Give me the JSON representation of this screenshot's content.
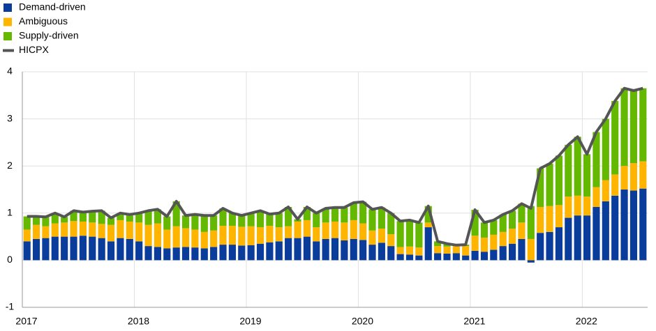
{
  "chart_data": {
    "type": "stacked-bar-line",
    "categories": [
      "2017",
      null,
      null,
      null,
      null,
      null,
      null,
      null,
      null,
      null,
      null,
      null,
      "2018",
      null,
      null,
      null,
      null,
      null,
      null,
      null,
      null,
      null,
      null,
      null,
      "2019",
      null,
      null,
      null,
      null,
      null,
      null,
      null,
      null,
      null,
      null,
      null,
      "2020",
      null,
      null,
      null,
      null,
      null,
      null,
      null,
      null,
      null,
      null,
      null,
      "2021",
      null,
      null,
      null,
      null,
      null,
      null,
      null,
      null,
      null,
      null,
      null,
      "2022",
      null,
      null,
      null,
      null,
      null,
      null
    ],
    "series": [
      {
        "name": "Demand-driven",
        "color": "#0a3c9c",
        "kind": "bar",
        "values": [
          0.4,
          0.45,
          0.47,
          0.5,
          0.5,
          0.5,
          0.52,
          0.5,
          0.47,
          0.4,
          0.47,
          0.45,
          0.4,
          0.3,
          0.28,
          0.25,
          0.27,
          0.28,
          0.27,
          0.25,
          0.28,
          0.33,
          0.33,
          0.31,
          0.32,
          0.35,
          0.38,
          0.4,
          0.47,
          0.47,
          0.5,
          0.4,
          0.45,
          0.47,
          0.42,
          0.45,
          0.43,
          0.33,
          0.37,
          0.3,
          0.13,
          0.12,
          0.1,
          0.7,
          0.15,
          0.14,
          0.15,
          0.1,
          0.2,
          0.18,
          0.22,
          0.3,
          0.35,
          0.45,
          -0.05,
          0.58,
          0.6,
          0.7,
          0.9,
          0.95,
          0.95,
          1.13,
          1.25,
          1.37,
          1.5,
          1.48,
          1.52
        ]
      },
      {
        "name": "Ambiguous",
        "color": "#ffb400",
        "kind": "bar",
        "values": [
          0.25,
          0.3,
          0.25,
          0.28,
          0.3,
          0.33,
          0.3,
          0.3,
          0.3,
          0.35,
          0.38,
          0.37,
          0.4,
          0.45,
          0.5,
          0.4,
          0.45,
          0.4,
          0.38,
          0.35,
          0.35,
          0.4,
          0.4,
          0.4,
          0.4,
          0.35,
          0.35,
          0.3,
          0.25,
          0.35,
          0.35,
          0.3,
          0.35,
          0.35,
          0.38,
          0.4,
          0.35,
          0.3,
          0.3,
          0.25,
          0.15,
          0.17,
          0.17,
          0.1,
          0.15,
          0.15,
          0.15,
          0.2,
          0.32,
          0.3,
          0.32,
          0.3,
          0.32,
          0.35,
          0.45,
          0.55,
          0.55,
          0.47,
          0.45,
          0.42,
          0.4,
          0.42,
          0.45,
          0.45,
          0.5,
          0.58,
          0.58
        ]
      },
      {
        "name": "Supply-driven",
        "color": "#65b800",
        "kind": "bar",
        "values": [
          0.28,
          0.18,
          0.2,
          0.22,
          0.12,
          0.22,
          0.2,
          0.24,
          0.28,
          0.15,
          0.15,
          0.15,
          0.2,
          0.3,
          0.3,
          0.28,
          0.53,
          0.27,
          0.32,
          0.35,
          0.32,
          0.37,
          0.27,
          0.24,
          0.28,
          0.35,
          0.25,
          0.3,
          0.41,
          0.05,
          0.28,
          0.3,
          0.3,
          0.3,
          0.32,
          0.37,
          0.46,
          0.45,
          0.45,
          0.45,
          0.55,
          0.56,
          0.53,
          0.35,
          0.1,
          0.06,
          0.02,
          0.03,
          0.55,
          0.32,
          0.31,
          0.37,
          0.38,
          0.4,
          0.7,
          0.82,
          0.9,
          1.05,
          1.1,
          1.25,
          0.9,
          1.17,
          1.3,
          1.56,
          1.65,
          1.54,
          1.55
        ]
      },
      {
        "name": "HICPX",
        "color": "#555555",
        "kind": "line",
        "values": [
          0.93,
          0.93,
          0.92,
          1.0,
          0.92,
          1.05,
          1.02,
          1.04,
          1.05,
          0.9,
          1.0,
          0.97,
          1.0,
          1.05,
          1.08,
          0.93,
          1.25,
          0.95,
          0.97,
          0.95,
          0.95,
          1.1,
          1.0,
          0.95,
          1.0,
          1.05,
          0.98,
          1.0,
          1.13,
          0.87,
          1.13,
          1.0,
          1.1,
          1.12,
          1.12,
          1.22,
          1.24,
          1.08,
          1.12,
          1.0,
          0.83,
          0.85,
          0.8,
          1.15,
          0.4,
          0.35,
          0.32,
          0.33,
          1.07,
          0.8,
          0.85,
          0.97,
          1.05,
          1.2,
          1.1,
          1.95,
          2.05,
          2.22,
          2.45,
          2.62,
          2.25,
          2.72,
          3.0,
          3.38,
          3.65,
          3.6,
          3.65
        ]
      }
    ],
    "ylim": [
      -1,
      4
    ],
    "yticks": [
      -1,
      0,
      1,
      2,
      3,
      4
    ],
    "grid": true,
    "legend": "top-left"
  }
}
